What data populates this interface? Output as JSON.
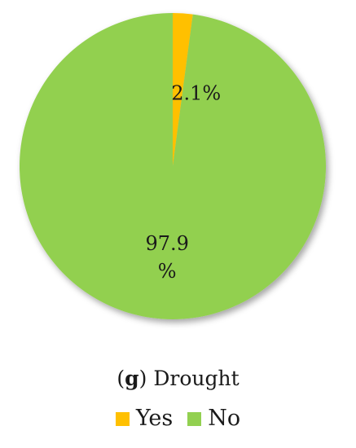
{
  "chart_data": {
    "type": "pie",
    "title": "",
    "categories": [
      "Yes",
      "No"
    ],
    "values": [
      2.1,
      97.9
    ],
    "labels": [
      "2.1%",
      "97.9 %"
    ],
    "colors": [
      "#FFC000",
      "#92D050"
    ],
    "legend_position": "bottom"
  },
  "caption": {
    "open_paren": "(",
    "letter": "g",
    "close_text": ") Drought"
  },
  "legend": {
    "items": [
      {
        "label": "Yes",
        "color": "#FFC000"
      },
      {
        "label": "No",
        "color": "#92D050"
      }
    ]
  }
}
